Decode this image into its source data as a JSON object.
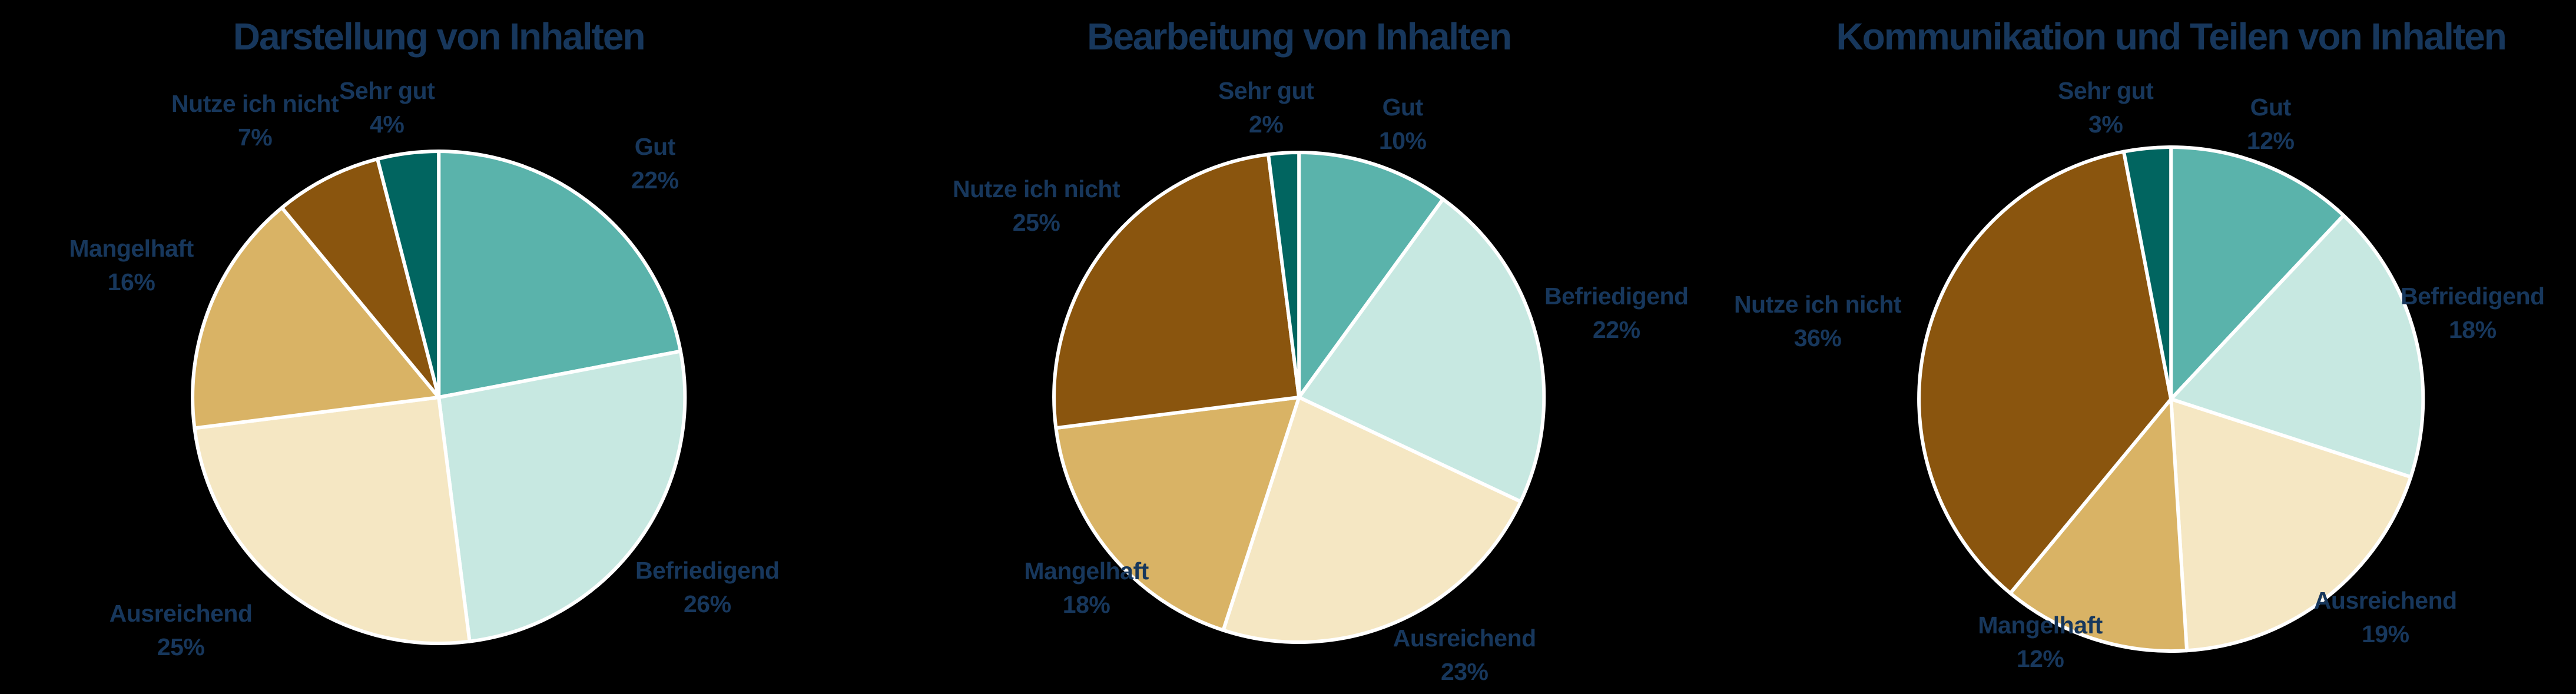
{
  "page": {
    "background_color": "#000000",
    "text_color": "#17375c",
    "slice_border_color": "#ffffff",
    "label_format": "{label} {value}%"
  },
  "chart_data": [
    {
      "type": "pie",
      "title": "Darstellung von Inhalten",
      "unit": "%",
      "start_angle": "12-o'clock",
      "direction": "clockwise",
      "legend": "none",
      "slices": [
        {
          "label": "Gut",
          "value": 22,
          "color": "#5ab3ab"
        },
        {
          "label": "Befriedigend",
          "value": 26,
          "color": "#c7e8e1"
        },
        {
          "label": "Ausreichend",
          "value": 25,
          "color": "#f5e7c3"
        },
        {
          "label": "Mangelhaft",
          "value": 16,
          "color": "#d9b365"
        },
        {
          "label": "Nutze ich nicht",
          "value": 7,
          "color": "#8a550e"
        },
        {
          "label": "Sehr gut",
          "value": 4,
          "color": "#016560"
        }
      ]
    },
    {
      "type": "pie",
      "title": "Bearbeitung von Inhalten",
      "unit": "%",
      "start_angle": "12-o'clock",
      "direction": "clockwise",
      "legend": "none",
      "slices": [
        {
          "label": "Gut",
          "value": 10,
          "color": "#5ab3ab"
        },
        {
          "label": "Befriedigend",
          "value": 22,
          "color": "#c7e8e1"
        },
        {
          "label": "Ausreichend",
          "value": 23,
          "color": "#f5e7c3"
        },
        {
          "label": "Mangelhaft",
          "value": 18,
          "color": "#d9b365"
        },
        {
          "label": "Nutze ich nicht",
          "value": 25,
          "color": "#8a550e"
        },
        {
          "label": "Sehr gut",
          "value": 2,
          "color": "#016560"
        }
      ]
    },
    {
      "type": "pie",
      "title": "Kommunikation und Teilen von Inhalten",
      "unit": "%",
      "start_angle": "12-o'clock",
      "direction": "clockwise",
      "legend": "none",
      "slices": [
        {
          "label": "Gut",
          "value": 12,
          "color": "#5ab3ab"
        },
        {
          "label": "Befriedigend",
          "value": 18,
          "color": "#c7e8e1"
        },
        {
          "label": "Ausreichend",
          "value": 19,
          "color": "#f5e7c3"
        },
        {
          "label": "Mangelhaft",
          "value": 12,
          "color": "#d9b365"
        },
        {
          "label": "Nutze ich nicht",
          "value": 36,
          "color": "#8a550e"
        },
        {
          "label": "Sehr gut",
          "value": 3,
          "color": "#016560"
        }
      ]
    }
  ]
}
